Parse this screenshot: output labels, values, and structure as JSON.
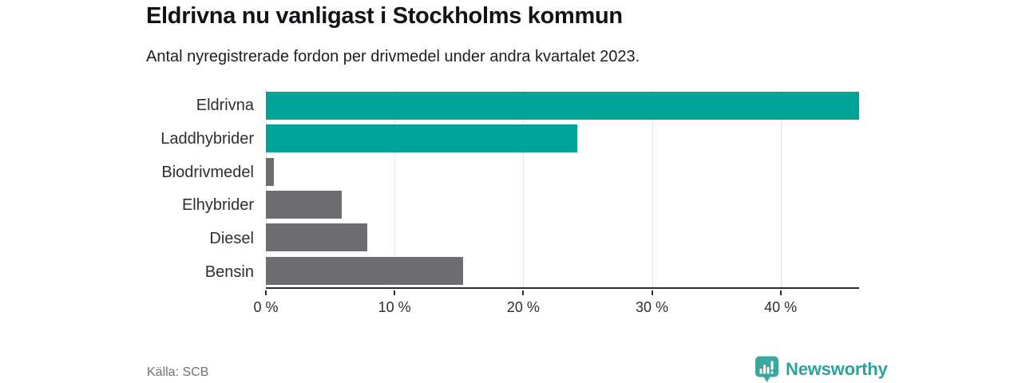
{
  "title": "Eldrivna nu vanligast i Stockholms kommun",
  "subtitle": "Antal nyregistrerade fordon per drivmedel under andra kvartalet 2023.",
  "source": "Källa: SCB",
  "brand": {
    "name": "Newsworthy",
    "text_color": "#2ba29a",
    "badge_color": "#3ba79e",
    "icon": "newsworthy-badge-bar-chart-icon"
  },
  "colors": {
    "highlight_bar": "#00a496",
    "default_bar": "#6d6d72",
    "gridline": "#e3e3e5",
    "axis": "#2e2e33",
    "label_text": "#2e2e33",
    "muted_text": "#70707a"
  },
  "chart_data": {
    "type": "bar",
    "orientation": "horizontal",
    "title": "Eldrivna nu vanligast i Stockholms kommun",
    "subtitle": "Antal nyregistrerade fordon per drivmedel under andra kvartalet 2023.",
    "categories": [
      "Eldrivna",
      "Laddhybrider",
      "Biodrivmedel",
      "Elhybrider",
      "Diesel",
      "Bensin"
    ],
    "values": [
      46.1,
      24.2,
      0.6,
      5.9,
      7.9,
      15.3
    ],
    "unit": "%",
    "bar_colors": [
      "#00a496",
      "#00a496",
      "#6d6d72",
      "#6d6d72",
      "#6d6d72",
      "#6d6d72"
    ],
    "xlim": [
      0,
      46.1
    ],
    "xticks": [
      0,
      10,
      20,
      30,
      40
    ],
    "xtick_labels": [
      "0 %",
      "10 %",
      "20 %",
      "30 %",
      "40 %"
    ],
    "grid": true,
    "legend": false,
    "value_labels": false
  }
}
